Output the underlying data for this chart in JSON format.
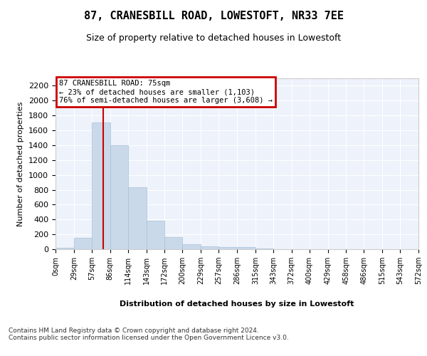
{
  "title": "87, CRANESBILL ROAD, LOWESTOFT, NR33 7EE",
  "subtitle": "Size of property relative to detached houses in Lowestoft",
  "xlabel": "Distribution of detached houses by size in Lowestoft",
  "ylabel": "Number of detached properties",
  "bar_color": "#c9d9ea",
  "bar_edge_color": "#a8c0d8",
  "background_color": "#eef2fb",
  "grid_color": "#ffffff",
  "annotation_text": "87 CRANESBILL ROAD: 75sqm\n← 23% of detached houses are smaller (1,103)\n76% of semi-detached houses are larger (3,608) →",
  "annotation_box_color": "#cc0000",
  "vline_x": 75,
  "vline_color": "#cc0000",
  "bin_edges": [
    0,
    29,
    57,
    86,
    114,
    143,
    172,
    200,
    229,
    257,
    286,
    315,
    343,
    372,
    400,
    429,
    458,
    486,
    515,
    543,
    572
  ],
  "bar_heights": [
    20,
    155,
    1710,
    1395,
    835,
    380,
    165,
    65,
    38,
    28,
    30,
    10,
    0,
    0,
    0,
    0,
    0,
    0,
    0,
    0
  ],
  "ylim": [
    0,
    2300
  ],
  "yticks": [
    0,
    200,
    400,
    600,
    800,
    1000,
    1200,
    1400,
    1600,
    1800,
    2000,
    2200
  ],
  "footer_text": "Contains HM Land Registry data © Crown copyright and database right 2024.\nContains public sector information licensed under the Open Government Licence v3.0.",
  "tick_labels": [
    "0sqm",
    "29sqm",
    "57sqm",
    "86sqm",
    "114sqm",
    "143sqm",
    "172sqm",
    "200sqm",
    "229sqm",
    "257sqm",
    "286sqm",
    "315sqm",
    "343sqm",
    "372sqm",
    "400sqm",
    "429sqm",
    "458sqm",
    "486sqm",
    "515sqm",
    "543sqm",
    "572sqm"
  ]
}
